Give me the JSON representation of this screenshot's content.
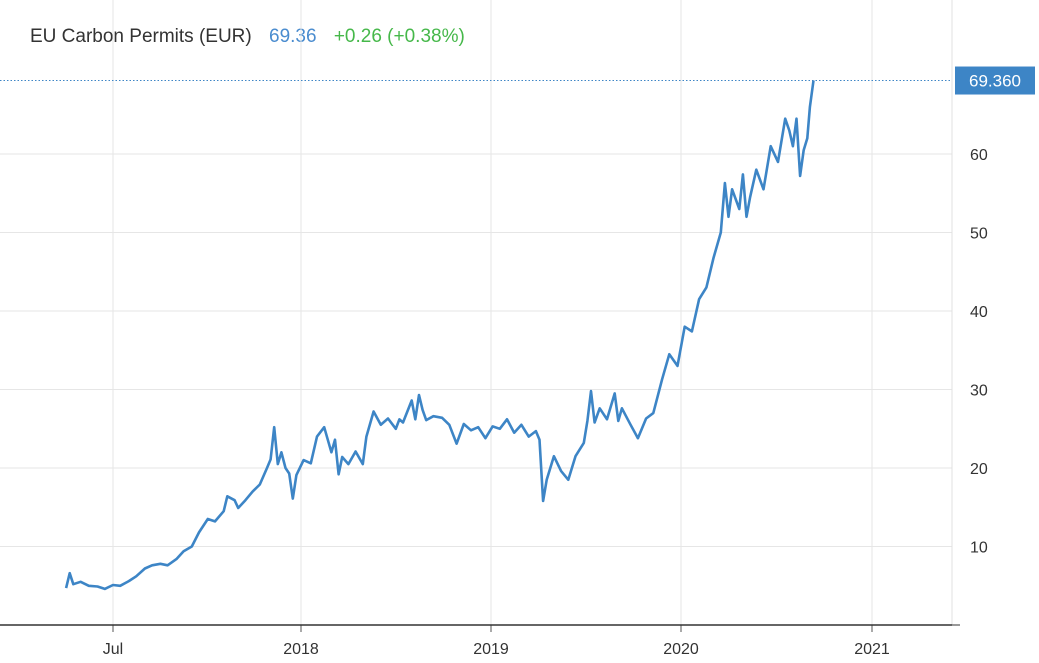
{
  "header": {
    "name": "EU Carbon Permits (EUR)",
    "price": "69.36",
    "change": "+0.26 (+0.38%)"
  },
  "colors": {
    "line": "#3d85c6",
    "price": "#4a8ccf",
    "change": "#46b84a",
    "grid": "#e6e6e6",
    "last_price_box": "#3d85c6"
  },
  "chart_data": {
    "type": "line",
    "title": "EU Carbon Permits (EUR)",
    "xlabel": "",
    "ylabel": "",
    "x_tick_labels": [
      "Jul",
      "2018",
      "2019",
      "2020",
      "2021"
    ],
    "y_ticks": [
      10,
      20,
      30,
      40,
      50,
      60
    ],
    "ylim": [
      0,
      70
    ],
    "grid": true,
    "last_value_label": "69.360",
    "series": [
      {
        "values": [
          [
            "2017-04-01",
            4.7
          ],
          [
            "2017-04-08",
            6.6
          ],
          [
            "2017-04-15",
            5.2
          ],
          [
            "2017-04-29",
            5.5
          ],
          [
            "2017-05-15",
            5.0
          ],
          [
            "2017-06-01",
            4.9
          ],
          [
            "2017-06-15",
            4.6
          ],
          [
            "2017-07-01",
            5.1
          ],
          [
            "2017-07-15",
            5.0
          ],
          [
            "2017-08-01",
            5.6
          ],
          [
            "2017-08-15",
            6.2
          ],
          [
            "2017-09-01",
            7.2
          ],
          [
            "2017-09-15",
            7.6
          ],
          [
            "2017-10-01",
            7.8
          ],
          [
            "2017-10-15",
            7.6
          ],
          [
            "2017-11-01",
            8.4
          ],
          [
            "2017-11-15",
            9.4
          ],
          [
            "2017-12-01",
            10.0
          ],
          [
            "2017-12-15",
            11.8
          ],
          [
            "2018-01-01",
            13.5
          ],
          [
            "2018-01-15",
            13.2
          ],
          [
            "2018-02-01",
            14.5
          ],
          [
            "2018-02-08",
            16.4
          ],
          [
            "2018-02-22",
            15.9
          ],
          [
            "2018-03-01",
            14.9
          ],
          [
            "2018-03-15",
            15.9
          ],
          [
            "2018-03-29",
            17.0
          ],
          [
            "2018-04-12",
            17.9
          ],
          [
            "2018-04-26",
            20.0
          ],
          [
            "2018-05-03",
            21.1
          ],
          [
            "2018-05-10",
            25.2
          ],
          [
            "2018-05-17",
            20.5
          ],
          [
            "2018-05-24",
            22.0
          ],
          [
            "2018-06-01",
            20.0
          ],
          [
            "2018-06-08",
            19.3
          ],
          [
            "2018-06-15",
            16.1
          ],
          [
            "2018-06-22",
            19.1
          ],
          [
            "2018-07-06",
            21.0
          ],
          [
            "2018-07-20",
            20.6
          ],
          [
            "2018-08-01",
            24.0
          ],
          [
            "2018-08-15",
            25.2
          ],
          [
            "2018-08-29",
            22.0
          ],
          [
            "2018-09-05",
            23.6
          ],
          [
            "2018-09-12",
            19.2
          ],
          [
            "2018-09-19",
            21.4
          ],
          [
            "2018-10-01",
            20.5
          ],
          [
            "2018-10-15",
            22.1
          ],
          [
            "2018-10-29",
            20.5
          ],
          [
            "2018-11-05",
            24.0
          ],
          [
            "2018-11-19",
            27.2
          ],
          [
            "2018-12-03",
            25.5
          ],
          [
            "2018-12-17",
            26.3
          ],
          [
            "2019-01-01",
            25.0
          ],
          [
            "2019-01-08",
            26.2
          ],
          [
            "2019-01-15",
            25.8
          ],
          [
            "2019-02-01",
            28.6
          ],
          [
            "2019-02-08",
            26.2
          ],
          [
            "2019-02-15",
            29.3
          ],
          [
            "2019-02-22",
            27.4
          ],
          [
            "2019-03-01",
            26.1
          ],
          [
            "2019-03-15",
            26.6
          ],
          [
            "2019-04-01",
            26.4
          ],
          [
            "2019-04-15",
            25.5
          ],
          [
            "2019-04-29",
            23.1
          ],
          [
            "2019-05-13",
            25.6
          ],
          [
            "2019-05-27",
            24.8
          ],
          [
            "2019-06-10",
            25.2
          ],
          [
            "2019-06-24",
            23.8
          ],
          [
            "2019-07-08",
            25.3
          ],
          [
            "2019-07-22",
            25.0
          ],
          [
            "2019-08-05",
            26.2
          ],
          [
            "2019-08-19",
            24.5
          ],
          [
            "2019-09-02",
            25.5
          ],
          [
            "2019-09-16",
            24.0
          ],
          [
            "2019-09-30",
            24.7
          ],
          [
            "2019-10-07",
            23.6
          ],
          [
            "2019-10-14",
            15.8
          ],
          [
            "2019-10-21",
            18.5
          ],
          [
            "2019-11-04",
            21.5
          ],
          [
            "2019-11-18",
            19.6
          ],
          [
            "2019-12-02",
            18.5
          ],
          [
            "2019-12-16",
            21.5
          ],
          [
            "2020-01-01",
            23.2
          ],
          [
            "2020-01-08",
            26.0
          ],
          [
            "2020-01-15",
            29.8
          ],
          [
            "2020-01-22",
            25.8
          ],
          [
            "2020-02-01",
            27.6
          ],
          [
            "2020-02-15",
            26.2
          ],
          [
            "2020-03-01",
            29.5
          ],
          [
            "2020-03-08",
            26.0
          ],
          [
            "2020-03-15",
            27.6
          ],
          [
            "2020-04-01",
            25.5
          ],
          [
            "2020-04-15",
            23.8
          ],
          [
            "2020-05-01",
            26.3
          ],
          [
            "2020-05-15",
            27.0
          ],
          [
            "2020-06-01",
            31.3
          ],
          [
            "2020-06-15",
            34.5
          ],
          [
            "2020-07-01",
            33.0
          ],
          [
            "2020-07-15",
            38.0
          ],
          [
            "2020-07-29",
            37.4
          ],
          [
            "2020-08-12",
            41.5
          ],
          [
            "2020-08-26",
            43.0
          ],
          [
            "2020-09-09",
            46.8
          ],
          [
            "2020-09-23",
            50.0
          ],
          [
            "2020-10-01",
            56.3
          ],
          [
            "2020-10-08",
            52.0
          ],
          [
            "2020-10-15",
            55.5
          ],
          [
            "2020-10-29",
            53.0
          ],
          [
            "2020-11-05",
            57.4
          ],
          [
            "2020-11-12",
            52.0
          ],
          [
            "2020-11-19",
            54.5
          ],
          [
            "2020-12-01",
            58.0
          ],
          [
            "2020-12-15",
            55.5
          ],
          [
            "2020-12-29",
            61.0
          ],
          [
            "2021-01-12",
            59.0
          ],
          [
            "2021-01-26",
            64.5
          ],
          [
            "2021-02-03",
            63.0
          ],
          [
            "2021-02-10",
            61.0
          ],
          [
            "2021-02-17",
            64.5
          ],
          [
            "2021-02-24",
            57.2
          ],
          [
            "2021-03-03",
            60.5
          ],
          [
            "2021-03-10",
            62.0
          ],
          [
            "2021-03-15",
            66.0
          ],
          [
            "2021-03-22",
            69.36
          ]
        ]
      }
    ]
  }
}
